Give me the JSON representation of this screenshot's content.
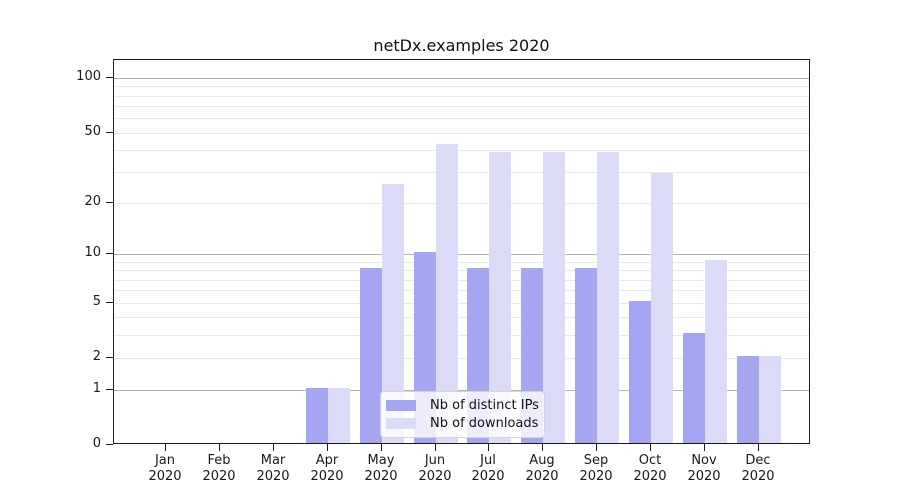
{
  "title": "netDx.examples 2020",
  "chart_data": {
    "type": "bar",
    "title": "netDx.examples 2020",
    "months": [
      "Jan",
      "Feb",
      "Mar",
      "Apr",
      "May",
      "Jun",
      "Jul",
      "Aug",
      "Sep",
      "Oct",
      "Nov",
      "Dec"
    ],
    "year": "2020",
    "series": [
      {
        "name": "Nb of distinct IPs",
        "color": "#a5a5f2",
        "values": [
          0,
          0,
          0,
          1,
          8,
          10,
          8,
          8,
          8,
          5,
          3,
          2
        ]
      },
      {
        "name": "Nb of downloads",
        "color": "#dbdbf8",
        "values": [
          0,
          0,
          0,
          1,
          25,
          42,
          38,
          38,
          38,
          29,
          9,
          2
        ]
      }
    ],
    "y_scale": "log10(1+v)",
    "ylim": [
      0,
      126
    ],
    "y_tick_values": [
      0,
      1,
      2,
      5,
      10,
      20,
      50,
      100
    ],
    "y_tick_labels": [
      "0",
      "1",
      "2",
      "5",
      "10",
      "20",
      "50",
      "100"
    ],
    "y_major_gridlines": [
      1,
      10,
      100
    ],
    "y_minor_gridlines": [
      2,
      3,
      4,
      5,
      6,
      7,
      8,
      9,
      20,
      30,
      40,
      50,
      60,
      70,
      80,
      90
    ],
    "grid": true,
    "legend_position": "lower center"
  },
  "colors": {
    "bar_distinct_ips": "#a5a5f2",
    "bar_downloads": "#dbdbf8",
    "major_gridline": "#b3b3b3",
    "minor_gridline": "#e9e9e9",
    "axis": "#1a1a1a",
    "text": "#191919",
    "legend_border": "#d5d5d5",
    "legend_background": "rgba(255,255,255,0.8)"
  }
}
